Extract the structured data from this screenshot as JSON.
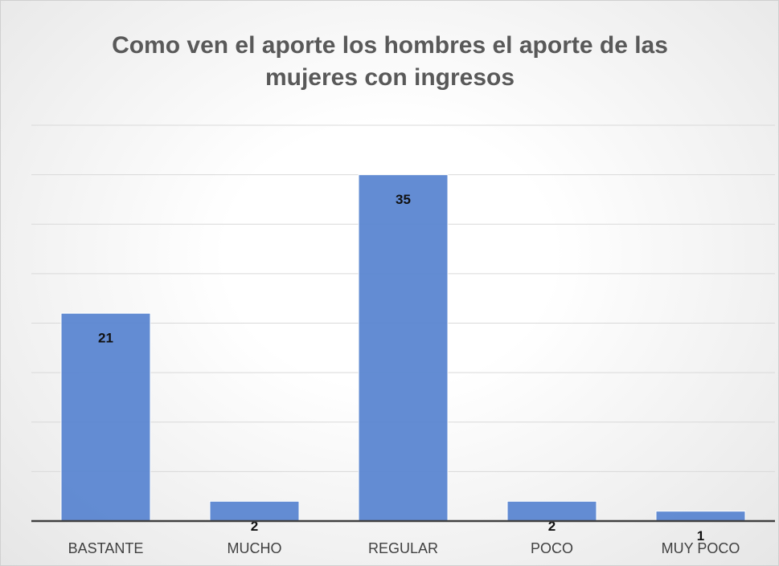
{
  "chart_data": {
    "type": "bar",
    "title": "Como ven el aporte los hombres el aporte de las mujeres con ingresos",
    "categories": [
      "BASTANTE",
      "MUCHO",
      "REGULAR",
      "POCO",
      "MUY POCO"
    ],
    "values": [
      21,
      2,
      35,
      2,
      1
    ],
    "color": "#5b86d1",
    "ylim": [
      0,
      40
    ],
    "yticks": [
      0,
      5,
      10,
      15,
      20,
      25,
      30,
      35,
      40
    ],
    "grid": true
  }
}
